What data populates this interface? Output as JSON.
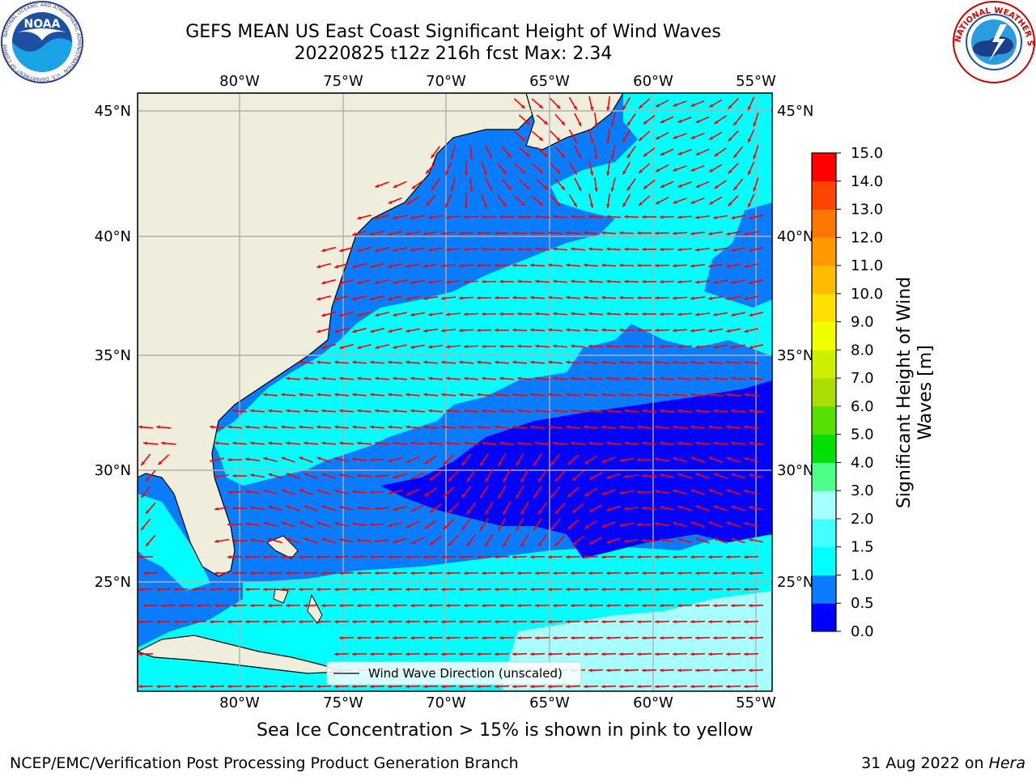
{
  "header": {
    "title_line1": "GEFS MEAN US East Coast Significant Height of Wind Waves",
    "title_line2": "20220825 t12z 216h fcst   Max: 2.34"
  },
  "logos": {
    "left": "NOAA",
    "left_ring_text": "NATIONAL OCEANIC AND ATMOSPHERIC ADMINISTRATION · U.S. DEPARTMENT OF COMMERCE",
    "right_ring_text": "NATIONAL WEATHER SERVICE"
  },
  "map": {
    "lon_labels": [
      "80°W",
      "75°W",
      "70°W",
      "65°W",
      "60°W",
      "55°W"
    ],
    "lat_labels": [
      "45°N",
      "40°N",
      "35°N",
      "30°N",
      "25°N"
    ],
    "legend_label": "Wind Wave Direction (unscaled)",
    "arrow_color": "#ff0000",
    "land_color": "#efeedc",
    "grid_color": "#b0b0b0"
  },
  "colorbar": {
    "label_line1": "Significant Height of Wind",
    "label_line2": "Waves [m]",
    "ticks": [
      "0.0",
      "0.5",
      "1.0",
      "1.5",
      "2.0",
      "3.0",
      "4.0",
      "5.0",
      "6.0",
      "7.0",
      "8.0",
      "9.0",
      "10.0",
      "11.0",
      "12.0",
      "13.0",
      "14.0",
      "15.0"
    ],
    "colors": [
      "#0000ff",
      "#0a7cff",
      "#00ffff",
      "#44ffff",
      "#a8ffff",
      "#4dff88",
      "#00e000",
      "#55e000",
      "#aadd00",
      "#ccf000",
      "#f0ff00",
      "#ffe000",
      "#ffbb00",
      "#ff9900",
      "#ff7700",
      "#ff4400",
      "#ff0000"
    ]
  },
  "footer": {
    "sea_ice_note": "Sea Ice Concentration > 15% is shown in pink to yellow",
    "left": "NCEP/EMC/Verification Post Processing Product Generation Branch",
    "right_date": "31 Aug 2022 on",
    "right_host": "Hera"
  }
}
